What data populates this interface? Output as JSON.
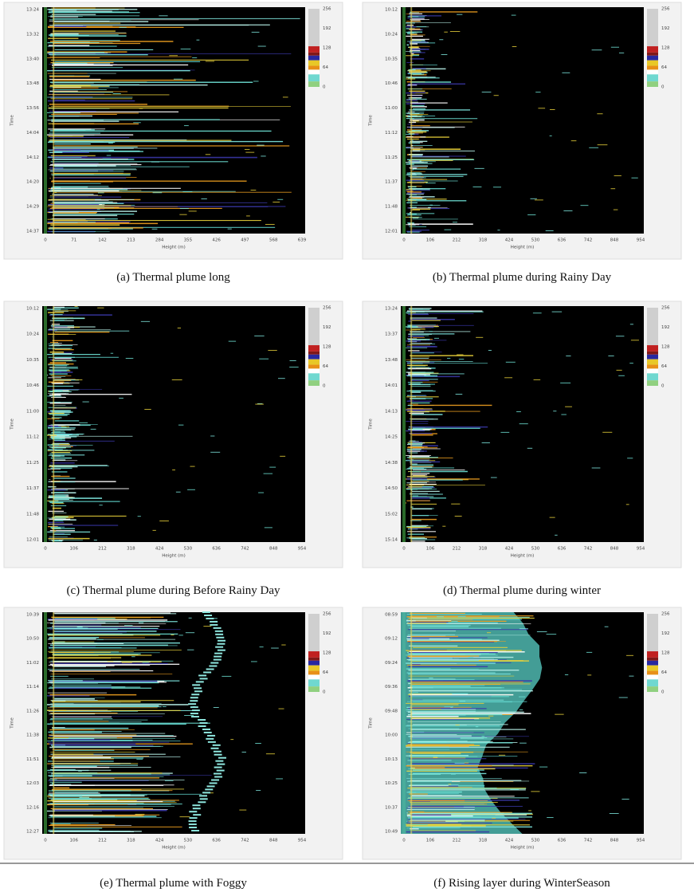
{
  "panels": [
    {
      "caption": "(a) Thermal plume long",
      "y_label": "Time",
      "x_label": "Height (m)",
      "y_ticks": [
        "13:24",
        "13:32",
        "13:40",
        "13:48",
        "13:56",
        "14:04",
        "14:12",
        "14:20",
        "14:29",
        "14:37"
      ],
      "x_ticks": [
        "0",
        "71",
        "142",
        "213",
        "284",
        "355",
        "426",
        "497",
        "568",
        "639"
      ],
      "colorbar_ticks": [
        "256",
        "192",
        "128",
        "64",
        "0"
      ]
    },
    {
      "caption": "(b) Thermal plume during Rainy Day",
      "y_label": "Time",
      "x_label": "Height (m)",
      "y_ticks": [
        "10:12",
        "10:24",
        "10:35",
        "10:46",
        "11:00",
        "11:12",
        "11:25",
        "11:37",
        "11:48",
        "12:01"
      ],
      "x_ticks": [
        "0",
        "106",
        "212",
        "318",
        "424",
        "530",
        "636",
        "742",
        "848",
        "954"
      ],
      "colorbar_ticks": [
        "256",
        "192",
        "128",
        "64",
        "0"
      ]
    },
    {
      "caption": "(c) Thermal plume during Before Rainy Day",
      "y_label": "Time",
      "x_label": "Height (m)",
      "y_ticks": [
        "10:12",
        "10:24",
        "10:35",
        "10:46",
        "11:00",
        "11:12",
        "11:25",
        "11:37",
        "11:48",
        "12:01"
      ],
      "x_ticks": [
        "0",
        "106",
        "212",
        "318",
        "424",
        "530",
        "636",
        "742",
        "848",
        "954"
      ],
      "colorbar_ticks": [
        "256",
        "192",
        "128",
        "64",
        "0"
      ]
    },
    {
      "caption": "(d) Thermal plume during winter",
      "y_label": "Time",
      "x_label": "Height (m)",
      "y_ticks": [
        "13:24",
        "13:37",
        "13:48",
        "14:01",
        "14:13",
        "14:25",
        "14:38",
        "14:50",
        "15:02",
        "15:14"
      ],
      "x_ticks": [
        "0",
        "106",
        "212",
        "318",
        "424",
        "530",
        "636",
        "742",
        "848",
        "954"
      ],
      "colorbar_ticks": [
        "256",
        "192",
        "128",
        "64",
        "0"
      ]
    },
    {
      "caption": "(e) Thermal plume with Foggy",
      "y_label": "Time",
      "x_label": "Height (m)",
      "y_ticks": [
        "10:39",
        "10:50",
        "11:02",
        "11:14",
        "11:26",
        "11:38",
        "11:51",
        "12:03",
        "12:16",
        "12:27"
      ],
      "x_ticks": [
        "0",
        "106",
        "212",
        "318",
        "424",
        "530",
        "636",
        "742",
        "848",
        "954"
      ],
      "colorbar_ticks": [
        "256",
        "192",
        "128",
        "64",
        "0"
      ]
    },
    {
      "caption": "(f) Rising layer during WinterSeason",
      "y_label": "Time",
      "x_label": "Height (m)",
      "y_ticks": [
        "08:59",
        "09:12",
        "09:24",
        "09:36",
        "09:48",
        "10:00",
        "10:13",
        "10:25",
        "10:37",
        "10:49"
      ],
      "x_ticks": [
        "0",
        "106",
        "212",
        "318",
        "424",
        "530",
        "636",
        "742",
        "848",
        "954"
      ],
      "colorbar_ticks": [
        "256",
        "192",
        "128",
        "64",
        "0"
      ]
    }
  ]
}
